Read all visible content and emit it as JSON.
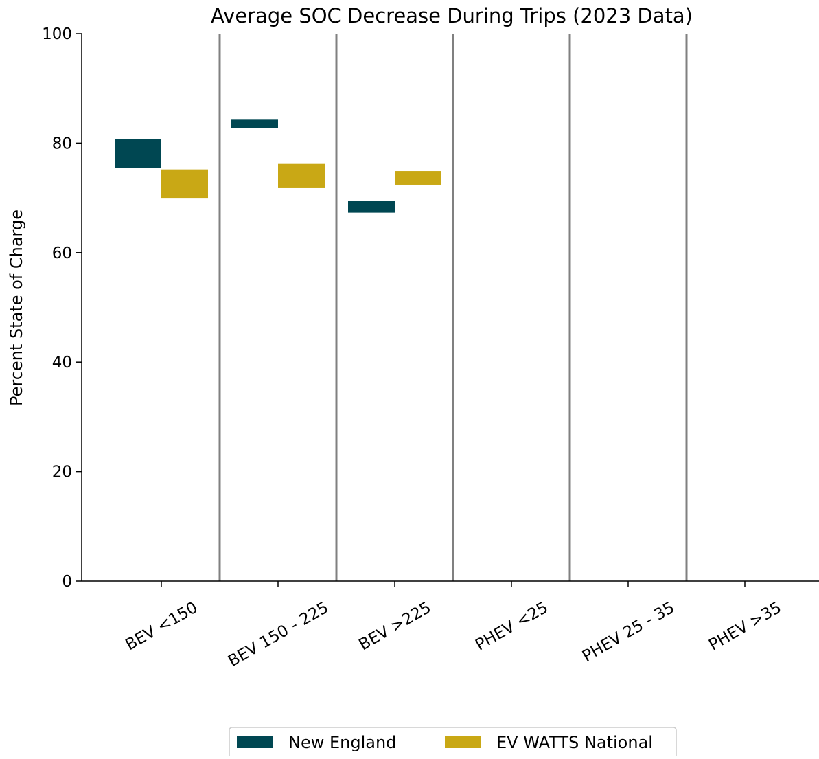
{
  "chart_data": {
    "type": "floating-bar",
    "title": "Average SOC Decrease During Trips (2023 Data)",
    "y_label": "Percent State of Charge",
    "categories": [
      "BEV <150",
      "BEV 150 - 225",
      "BEV >225",
      "PHEV <25",
      "PHEV 25 - 35",
      "PHEV >35"
    ],
    "series": [
      {
        "name": "New England",
        "color": "#004752",
        "start": [
          80.7,
          84.4,
          69.4,
          null,
          null,
          null
        ],
        "end": [
          75.5,
          82.7,
          67.3,
          null,
          null,
          null
        ]
      },
      {
        "name": "EV WATTS National",
        "color": "#c9a815",
        "start": [
          75.2,
          76.2,
          74.9,
          null,
          null,
          null
        ],
        "end": [
          70.0,
          71.9,
          72.4,
          null,
          null,
          null
        ]
      }
    ],
    "ylim": [
      0,
      100
    ],
    "yticks": [
      0,
      20,
      40,
      60,
      80,
      100
    ],
    "legend": "bottom"
  }
}
